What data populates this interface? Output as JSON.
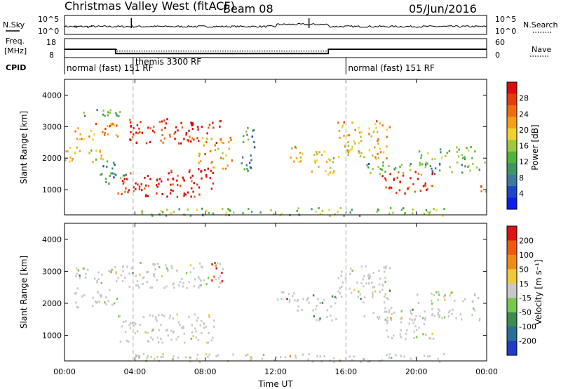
{
  "header": {
    "title": "Christmas Valley West (fitACF)",
    "beam": "Beam 08",
    "date": "05/Jun/2016"
  },
  "strip": {
    "nsky_label": "N.Sky",
    "nsearch_label": "N.Search",
    "freq_label_1": "Freq.",
    "freq_label_2": "[MHz]",
    "nave_label": "Nave",
    "cpid_label": "CPID",
    "noise_ticks_left": [
      "10^5",
      "10^0"
    ],
    "noise_ticks_right": [
      "10^5",
      "10^0"
    ],
    "freq_ticks_left": [
      "18",
      "8"
    ],
    "freq_ticks_right": [
      "60",
      "0"
    ],
    "modes": [
      {
        "label": "normal (fast) 151 RF",
        "start_h": 0,
        "end_h": 3.9
      },
      {
        "label": "themis 3300 RF",
        "start_h": 3.9,
        "end_h": 16.0
      },
      {
        "label": "normal (fast) 151 RF",
        "start_h": 16.0,
        "end_h": 24
      }
    ],
    "freq_steps": [
      {
        "start_h": 0,
        "end_h": 2.9,
        "mhz": 12.3
      },
      {
        "start_h": 2.9,
        "end_h": 15.0,
        "mhz": 9.6
      },
      {
        "start_h": 15.0,
        "end_h": 24,
        "mhz": 12.3
      }
    ],
    "noise_spikes_h": [
      3.8,
      13.9
    ],
    "nave_steps": [
      {
        "start_h": 0,
        "end_h": 3.0,
        "value": 25
      },
      {
        "start_h": 3.0,
        "end_h": 15.0,
        "value": 19
      },
      {
        "start_h": 15.0,
        "end_h": 24,
        "value": 25
      }
    ]
  },
  "chart_data": [
    {
      "type": "heatmap",
      "name": "power",
      "xlabel": "",
      "ylabel": "Slant Range [km]",
      "xlim": [
        0,
        24
      ],
      "ylim": [
        200,
        4500
      ],
      "yticks": [
        1000,
        2000,
        3000,
        4000
      ],
      "colorbar": {
        "label": "Power [dB]",
        "ticks": [
          "28",
          "24",
          "20",
          "16",
          "12",
          "8",
          "4"
        ],
        "colors": [
          "#0a1ef0",
          "#1e46c8",
          "#3c78a0",
          "#3c9664",
          "#50b43c",
          "#a0c83c",
          "#f0d228",
          "#f5a014",
          "#f06e0a",
          "#e63c0a",
          "#dc0a0a"
        ]
      },
      "patches": [
        {
          "t0": 0.0,
          "t1": 2.5,
          "r0": 1900,
          "r1": 2400,
          "level": 0.55
        },
        {
          "t0": 0.5,
          "t1": 3.0,
          "r0": 2600,
          "r1": 3200,
          "level": 0.72
        },
        {
          "t0": 1.0,
          "t1": 3.5,
          "r0": 3300,
          "r1": 3600,
          "level": 0.35
        },
        {
          "t0": 3.0,
          "t1": 8.5,
          "r0": 800,
          "r1": 1700,
          "level": 0.95
        },
        {
          "t0": 3.5,
          "t1": 9.0,
          "r0": 2500,
          "r1": 3300,
          "level": 0.92
        },
        {
          "t0": 7.5,
          "t1": 9.5,
          "r0": 1700,
          "r1": 2700,
          "level": 0.65
        },
        {
          "t0": 2.0,
          "t1": 3.5,
          "r0": 1200,
          "r1": 1900,
          "level": 0.3
        },
        {
          "t0": 12.5,
          "t1": 13.5,
          "r0": 1800,
          "r1": 2400,
          "level": 0.6
        },
        {
          "t0": 14.0,
          "t1": 15.5,
          "r0": 1500,
          "r1": 2300,
          "level": 0.55
        },
        {
          "t0": 15.5,
          "t1": 18.5,
          "r0": 2000,
          "r1": 3200,
          "level": 0.65
        },
        {
          "t0": 18.0,
          "t1": 21.0,
          "r0": 900,
          "r1": 1600,
          "level": 0.88
        },
        {
          "t0": 17.0,
          "t1": 24.0,
          "r0": 1500,
          "r1": 1900,
          "level": 0.35
        },
        {
          "t0": 20.0,
          "t1": 23.5,
          "r0": 2000,
          "r1": 2400,
          "level": 0.45
        },
        {
          "t0": 23.5,
          "t1": 24.0,
          "r0": 800,
          "r1": 1200,
          "level": 0.8
        },
        {
          "t0": 4.0,
          "t1": 22.0,
          "r0": 200,
          "r1": 450,
          "level": 0.45
        },
        {
          "t0": 10.0,
          "t1": 10.8,
          "r0": 1500,
          "r1": 3000,
          "level": 0.3
        }
      ]
    },
    {
      "type": "heatmap",
      "name": "velocity",
      "xlabel": "Time UT",
      "ylabel": "Slant Range [km]",
      "xlim": [
        0,
        24
      ],
      "ylim": [
        200,
        4500
      ],
      "yticks": [
        1000,
        2000,
        3000,
        4000
      ],
      "xticks": [
        "00:00",
        "04:00",
        "08:00",
        "12:00",
        "16:00",
        "20:00",
        "00:00"
      ],
      "colorbar": {
        "label": "Velocity [m s⁻¹]",
        "ticks": [
          "200",
          "100",
          "50",
          "15",
          "-15",
          "-50",
          "-100",
          "-200"
        ],
        "colors": [
          "#1e3cc8",
          "#286e96",
          "#3c8c50",
          "#78c850",
          "#c8c8c8",
          "#f0c83c",
          "#f08c14",
          "#f05a0a",
          "#dc1414"
        ]
      },
      "patches": [
        {
          "t0": 0.5,
          "t1": 3.0,
          "r0": 1900,
          "r1": 2500,
          "level": 0.5
        },
        {
          "t0": 0.5,
          "t1": 3.5,
          "r0": 2600,
          "r1": 3200,
          "level": 0.5
        },
        {
          "t0": 3.0,
          "t1": 8.5,
          "r0": 800,
          "r1": 1700,
          "level": 0.5
        },
        {
          "t0": 3.5,
          "t1": 9.0,
          "r0": 2500,
          "r1": 3300,
          "level": 0.5
        },
        {
          "t0": 8.3,
          "t1": 9.0,
          "r0": 2700,
          "r1": 3300,
          "level": 0.95
        },
        {
          "t0": 12.0,
          "t1": 13.5,
          "r0": 1800,
          "r1": 2400,
          "level": 0.8
        },
        {
          "t0": 13.3,
          "t1": 13.9,
          "r0": 1900,
          "r1": 2300,
          "level": 0.2
        },
        {
          "t0": 14.0,
          "t1": 15.5,
          "r0": 1500,
          "r1": 2300,
          "level": 0.35
        },
        {
          "t0": 15.5,
          "t1": 18.5,
          "r0": 2000,
          "r1": 3200,
          "level": 0.5
        },
        {
          "t0": 18.0,
          "t1": 21.0,
          "r0": 900,
          "r1": 1600,
          "level": 0.5
        },
        {
          "t0": 17.0,
          "t1": 24.0,
          "r0": 1500,
          "r1": 1900,
          "level": 0.5
        },
        {
          "t0": 20.0,
          "t1": 23.5,
          "r0": 2000,
          "r1": 2400,
          "level": 0.5
        },
        {
          "t0": 4.0,
          "t1": 22.0,
          "r0": 200,
          "r1": 450,
          "level": 0.55
        }
      ]
    }
  ]
}
